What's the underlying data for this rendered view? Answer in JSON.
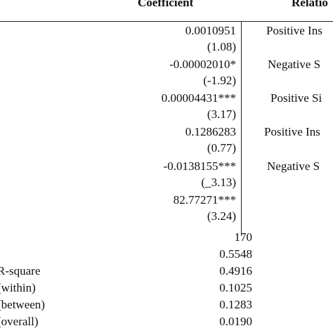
{
  "header": {
    "coefficient": "Coefficient",
    "relationship": "Relatio"
  },
  "rows": [
    {
      "coef": "0.0010951",
      "t": "(1.08)",
      "relation": "Positive Ins"
    },
    {
      "coef": "-0.00002010*",
      "t": "(-1.92)",
      "relation": "Negative S"
    },
    {
      "coef": "0.00004431***",
      "t": "(3.17)",
      "relation": "Positive Si"
    },
    {
      "coef": "0.1286283",
      "t": "(0.77)",
      "relation": "Positive Ins"
    },
    {
      "coef": "-0.0138155***",
      "t": "(_3.13)",
      "relation": "Negative S"
    },
    {
      "coef": "82.77271***",
      "t": "(3.24)",
      "relation": ""
    }
  ],
  "stats": [
    {
      "label": "",
      "value": "170"
    },
    {
      "label": "",
      "value": "0.5548"
    },
    {
      "label": "R-square",
      "value": "0.4916"
    },
    {
      "label": "(within)",
      "value": "0.1025"
    },
    {
      "label": "(between)",
      "value": "0.1283"
    },
    {
      "label": "(overall)",
      "value": "0.0190"
    }
  ]
}
